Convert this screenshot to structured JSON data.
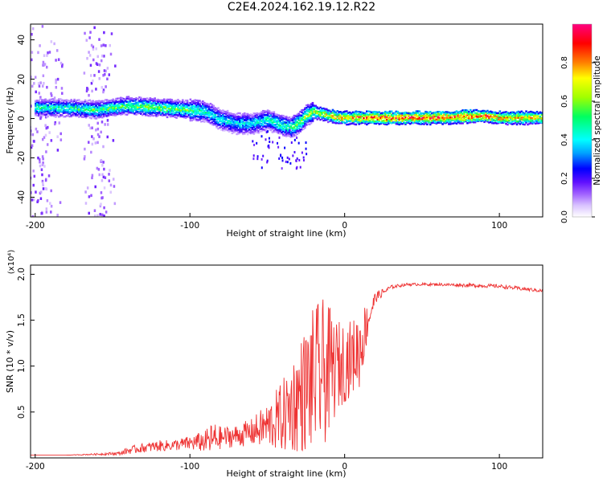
{
  "figure": {
    "title": "C2E4.2024.162.19.12.R22",
    "colors": {
      "snr_line": "#ee3333",
      "axis": "#000000",
      "colorbar": [
        "#ffffff",
        "#d9c2ff",
        "#a060ff",
        "#6010ff",
        "#0000ff",
        "#00a0ff",
        "#00ffff",
        "#00ff60",
        "#a0ff00",
        "#ffff00",
        "#ff8000",
        "#ff0000",
        "#ff0080"
      ]
    }
  },
  "chart_data": [
    {
      "type": "heatmap",
      "xlabel": "Height of straight line (km)",
      "ylabel": "Frequency (Hz)",
      "xlim": [
        -203,
        128
      ],
      "ylim": [
        -50,
        48
      ],
      "xticks": [
        -200,
        -100,
        0,
        100
      ],
      "yticks": [
        -40,
        -20,
        0,
        20,
        40
      ],
      "colorbar": {
        "label": "Normalized spectral amplitude",
        "range": [
          0,
          1
        ],
        "ticks": [
          "0.0",
          "0.2",
          "0.4",
          "0.6",
          "0.8"
        ]
      },
      "ridge": {
        "x": [
          -200,
          -180,
          -160,
          -140,
          -120,
          -100,
          -90,
          -80,
          -70,
          -60,
          -50,
          -40,
          -35,
          -30,
          -25,
          -20,
          -10,
          0,
          10,
          30,
          60,
          90,
          100,
          128
        ],
        "y": [
          6,
          6,
          5,
          7,
          6,
          5,
          4,
          0,
          -2,
          -2,
          0,
          -3,
          -4,
          -2,
          2,
          4,
          2,
          1,
          1,
          1,
          1,
          2,
          1,
          1
        ],
        "intensity": [
          0.5,
          0.5,
          0.55,
          0.6,
          0.6,
          0.6,
          0.5,
          0.45,
          0.45,
          0.45,
          0.5,
          0.5,
          0.55,
          0.6,
          0.65,
          0.7,
          0.75,
          0.85,
          0.9,
          0.95,
          0.95,
          0.9,
          0.85,
          0.8
        ]
      }
    },
    {
      "type": "line",
      "xlabel": "Height of straight line (km)",
      "ylabel": "SNR (10 * v/v)",
      "yexponent": "(x10⁴)",
      "xlim": [
        -203,
        128
      ],
      "ylim": [
        0,
        2.1
      ],
      "xticks": [
        -200,
        -100,
        0,
        100
      ],
      "yticks": [
        "0.5",
        "1.0",
        "1.5",
        "2.0"
      ],
      "series": [
        {
          "x": [
            -203,
            -180,
            -160,
            -145,
            -140,
            -130,
            -120,
            -110,
            -100,
            -90,
            -85,
            -80,
            -70,
            -60,
            -50,
            -40,
            -35,
            -30,
            -25,
            -20,
            -15,
            -10,
            -5,
            0,
            5,
            10,
            15,
            20,
            30,
            40,
            60,
            80,
            100,
            110,
            128
          ],
          "y": [
            0.03,
            0.03,
            0.04,
            0.05,
            0.08,
            0.11,
            0.13,
            0.14,
            0.16,
            0.18,
            0.2,
            0.22,
            0.24,
            0.28,
            0.35,
            0.45,
            0.55,
            0.65,
            0.75,
            0.85,
            0.9,
            0.95,
            1.0,
            1.05,
            1.1,
            1.2,
            1.5,
            1.75,
            1.86,
            1.89,
            1.89,
            1.88,
            1.87,
            1.85,
            1.82
          ],
          "noise": [
            0.0,
            0.0,
            0.01,
            0.02,
            0.04,
            0.05,
            0.06,
            0.06,
            0.08,
            0.12,
            0.2,
            0.12,
            0.12,
            0.15,
            0.25,
            0.4,
            0.5,
            0.6,
            0.7,
            0.8,
            0.85,
            0.7,
            0.5,
            0.45,
            0.4,
            0.45,
            0.2,
            0.06,
            0.02,
            0.015,
            0.015,
            0.02,
            0.02,
            0.02,
            0.02
          ]
        }
      ]
    }
  ]
}
